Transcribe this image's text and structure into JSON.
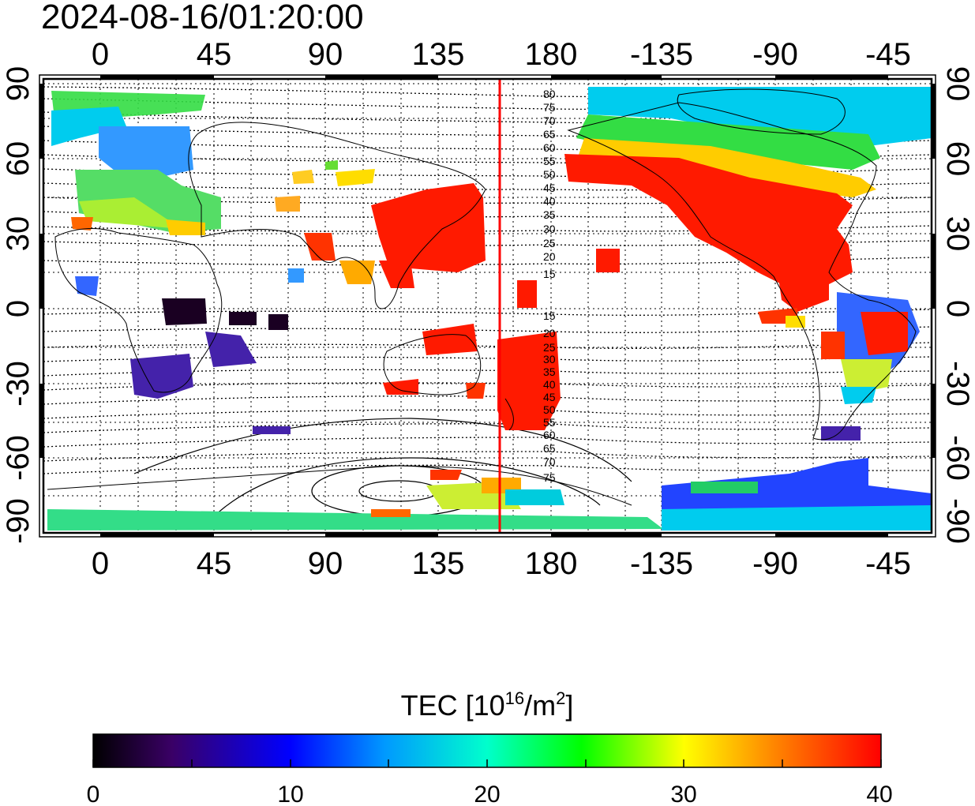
{
  "timestamp": "2024-08-16/01:20:00",
  "top_lon_labels": [
    "0",
    "45",
    "90",
    "135",
    "180",
    "-135",
    "-90",
    "-45"
  ],
  "bottom_lon_labels": [
    "0",
    "45",
    "90",
    "135",
    "180",
    "-135",
    "-90",
    "-45"
  ],
  "left_lat_labels": [
    "90",
    "60",
    "30",
    "0",
    "-30",
    "-60",
    "-90"
  ],
  "right_lat_labels": [
    "90",
    "60",
    "30",
    "0",
    "-30",
    "-60",
    "-90"
  ],
  "contour_labels_north": [
    "80",
    "75",
    "70",
    "65",
    "60",
    "55",
    "50",
    "45",
    "40",
    "35",
    "30",
    "25",
    "20",
    "15"
  ],
  "contour_labels_south": [
    "15",
    "20",
    "25",
    "30",
    "35",
    "40",
    "45",
    "50",
    "55",
    "60",
    "65",
    "70",
    "75"
  ],
  "colorbar": {
    "title_prefix": "TEC  [10",
    "title_exp": "16",
    "title_mid": "/m",
    "title_exp2": "2",
    "title_suffix": "]",
    "tick_labels": [
      "0",
      "10",
      "20",
      "30",
      "40"
    ],
    "min": 0,
    "max": 40
  },
  "colors": {
    "frame": "#000000",
    "meridian_line": "#ff0000",
    "tec_high": "#ff1a00",
    "tec_low": "#1a0033"
  }
}
